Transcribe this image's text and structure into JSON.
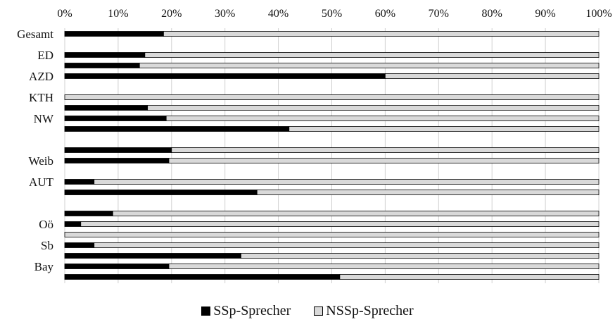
{
  "chart_data": {
    "type": "bar",
    "orientation": "horizontal",
    "stacked": "percent",
    "xlim": [
      0,
      100
    ],
    "x_ticks": [
      "0%",
      "10%",
      "20%",
      "30%",
      "40%",
      "50%",
      "60%",
      "70%",
      "80%",
      "90%",
      "100%"
    ],
    "x_tick_position": "top",
    "grid": true,
    "legend_position": "bottom",
    "categories": [
      "Gesamt",
      "",
      "ED",
      "",
      "AZD",
      "",
      "KTH",
      "",
      "NW",
      "",
      "",
      "",
      "Weib",
      "",
      "AUT",
      "",
      "",
      "",
      "Oö",
      "",
      "Sb",
      "",
      "Bay",
      ""
    ],
    "series": [
      {
        "name": "SSp-Sprecher",
        "color": "#000000",
        "values": [
          18.5,
          null,
          15,
          14,
          60,
          null,
          0,
          15.5,
          19,
          42,
          null,
          20,
          19.5,
          null,
          5.5,
          36,
          null,
          9,
          3,
          0,
          5.5,
          33,
          19.5,
          51.5
        ]
      },
      {
        "name": "NSSp-Sprecher",
        "color": "#d9d9d9",
        "values": [
          81.5,
          null,
          85,
          86,
          40,
          null,
          100,
          84.5,
          81,
          58,
          null,
          80,
          80.5,
          null,
          94.5,
          64,
          null,
          91,
          97,
          100,
          94.5,
          67,
          80.5,
          48.5
        ]
      }
    ]
  }
}
